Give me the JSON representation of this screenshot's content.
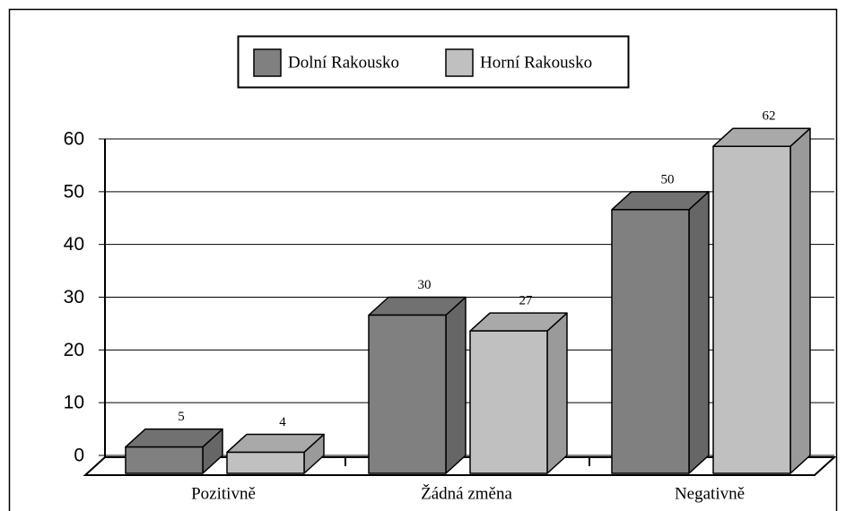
{
  "chart_data": {
    "type": "bar",
    "categories": [
      "Pozitivně",
      "Žádná změna",
      "Negativně"
    ],
    "series": [
      {
        "name": "Dolní Rakousko",
        "color": "#808080",
        "values": [
          5,
          30,
          50
        ]
      },
      {
        "name": "Horní Rakousko",
        "color": "#c0c0c0",
        "values": [
          4,
          27,
          62
        ]
      }
    ],
    "ylim": [
      0,
      60
    ],
    "yticks": [
      0,
      10,
      20,
      30,
      40,
      50,
      60
    ],
    "grid": true,
    "legend": "top"
  }
}
